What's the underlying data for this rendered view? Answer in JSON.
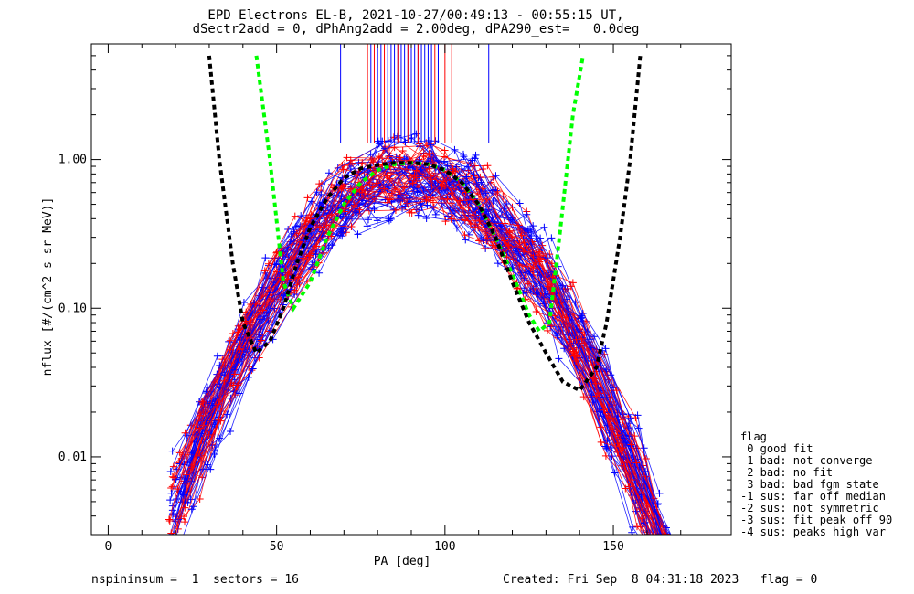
{
  "title_line1": "EPD Electrons EL-B, 2021-10-27/00:49:13 - 00:55:15 UT,",
  "title_line2": "dSectr2add = 0, dPhAng2add = 2.00deg, dPA290_est=   0.0deg",
  "footer_left": "nspininsum =  1  sectors = 16",
  "footer_right": "Created: Fri Sep  8 04:31:18 2023   flag = 0",
  "legend": {
    "title": "flag",
    "items": [
      " 0 good fit",
      " 1 bad: not converge",
      " 2 bad: no fit",
      " 3 bad: bad fgm state",
      "-1 sus: far off median",
      "-2 sus: not symmetric",
      "-3 sus: fit peak off 90",
      "-4 sus: peaks high var"
    ]
  },
  "chart_data": {
    "type": "scatter",
    "xlabel": "PA [deg]",
    "ylabel": "nflux [#/(cm^2 s sr MeV)]",
    "xlim": [
      -5,
      185
    ],
    "ylim": [
      0.003,
      6
    ],
    "yscale": "log",
    "xticks": [
      0,
      50,
      100,
      150
    ],
    "yticks": [
      0.01,
      0.1,
      1.0
    ],
    "ytick_labels": [
      "0.01",
      "0.10",
      "1.00"
    ],
    "colors": {
      "red": "#ff0000",
      "blue": "#0000ff",
      "green": "#00ff00",
      "black": "#000000"
    },
    "spectra": {
      "count_red": 35,
      "count_blue": 45,
      "pa_min": 18,
      "pa_max": 162,
      "peak_center_pa": 90,
      "peak_flux": 0.85,
      "flux_at_pa20": 0.005
    },
    "fit_curves": [
      {
        "color": "green",
        "style": "dashed",
        "points": [
          [
            44,
            5.0
          ],
          [
            48,
            1.0
          ],
          [
            52,
            0.15
          ],
          [
            55,
            0.1
          ],
          [
            60,
            0.15
          ],
          [
            65,
            0.3
          ],
          [
            70,
            0.5
          ],
          [
            75,
            0.7
          ],
          [
            80,
            0.85
          ],
          [
            85,
            0.93
          ],
          [
            90,
            0.95
          ],
          [
            95,
            0.93
          ],
          [
            100,
            0.85
          ],
          [
            105,
            0.7
          ],
          [
            110,
            0.5
          ],
          [
            115,
            0.3
          ],
          [
            120,
            0.17
          ],
          [
            125,
            0.09
          ],
          [
            128,
            0.07
          ],
          [
            131,
            0.08
          ],
          [
            134,
            0.3
          ],
          [
            138,
            2.0
          ],
          [
            141,
            5.0
          ]
        ]
      },
      {
        "color": "black",
        "style": "dashed",
        "points": [
          [
            30,
            5.0
          ],
          [
            33,
            1.0
          ],
          [
            37,
            0.2
          ],
          [
            40,
            0.08
          ],
          [
            44,
            0.05
          ],
          [
            48,
            0.06
          ],
          [
            52,
            0.1
          ],
          [
            56,
            0.2
          ],
          [
            60,
            0.35
          ],
          [
            65,
            0.55
          ],
          [
            70,
            0.75
          ],
          [
            75,
            0.87
          ],
          [
            80,
            0.92
          ],
          [
            85,
            0.95
          ],
          [
            90,
            0.95
          ],
          [
            95,
            0.93
          ],
          [
            100,
            0.85
          ],
          [
            105,
            0.7
          ],
          [
            110,
            0.5
          ],
          [
            115,
            0.3
          ],
          [
            120,
            0.15
          ],
          [
            125,
            0.08
          ],
          [
            130,
            0.05
          ],
          [
            135,
            0.032
          ],
          [
            140,
            0.028
          ],
          [
            145,
            0.04
          ],
          [
            148,
            0.08
          ],
          [
            152,
            0.3
          ],
          [
            155,
            1.0
          ],
          [
            158,
            5.0
          ]
        ]
      }
    ],
    "vertical_marks": {
      "blue_pa": [
        69,
        78,
        80,
        81,
        83,
        84,
        85,
        86,
        87,
        88,
        89,
        90,
        91,
        92,
        93,
        94,
        95,
        96,
        98,
        113
      ],
      "red_pa": [
        77,
        79,
        82,
        86,
        89,
        92,
        97,
        100,
        102
      ],
      "y_top": 6,
      "y_bottom": 1.3
    }
  }
}
